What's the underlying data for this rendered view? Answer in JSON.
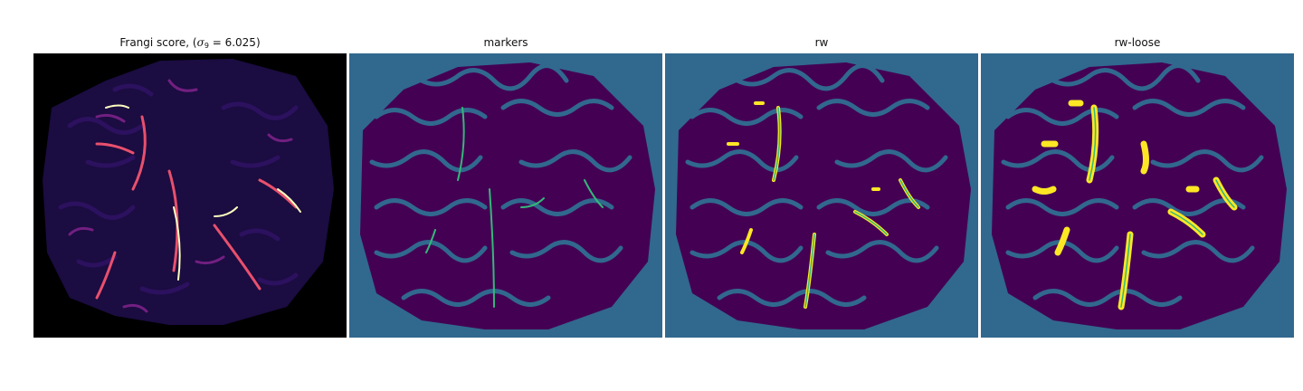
{
  "figure": {
    "panels": [
      {
        "title": "Frangi score, (σ₉ = 6.025)",
        "title_parts": {
          "prefix": "Frangi score, (",
          "sigma": "σ",
          "sub": "9",
          "suffix": " = 6.025)"
        },
        "colormap": "magma"
      },
      {
        "title": "markers",
        "colormap": "viridis"
      },
      {
        "title": "rw",
        "colormap": "viridis"
      },
      {
        "title": "rw-loose",
        "colormap": "viridis"
      }
    ]
  },
  "colors": {
    "viridis_background": "#31688e",
    "viridis_low": "#440154",
    "viridis_mid": "#35b779",
    "viridis_high": "#fde725",
    "magma_background": "#000000",
    "magma_low": "#2c115f",
    "magma_mid": "#b73779",
    "magma_high": "#fcfdbf"
  }
}
